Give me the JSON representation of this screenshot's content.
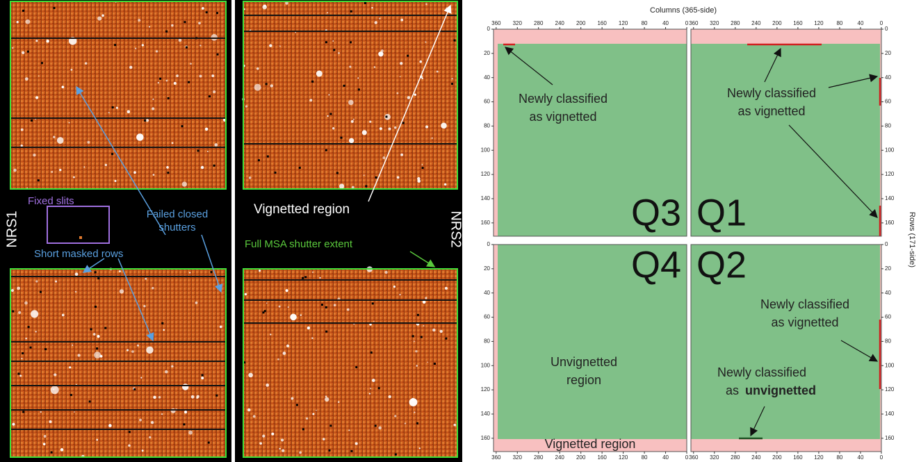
{
  "left_panel": {
    "detector_labels": [
      "NRS1",
      "NRS2"
    ],
    "fixed_slits": "Fixed slits",
    "failed_closed_shutters": [
      "Failed closed",
      "shutters"
    ],
    "short_masked_rows": "Short masked rows",
    "vignetted_region": "Vignetted region",
    "full_msa_shutter_extent": "Full MSA shutter extent"
  },
  "right_panel": {
    "x_axis_label": "Columns (365-side)",
    "y_axis_label": "Rows (171-side)",
    "column_ticks": [
      360,
      320,
      280,
      240,
      200,
      160,
      120,
      80,
      40,
      0
    ],
    "row_ticks": [
      0,
      20,
      40,
      60,
      80,
      100,
      120,
      140,
      160
    ],
    "quadrants": [
      {
        "label": "Q3",
        "annotation": [
          "Newly classified",
          "as vignetted"
        ]
      },
      {
        "label": "Q1",
        "annotation": [
          "Newly classified",
          "as vignetted"
        ]
      },
      {
        "label": "Q4",
        "annotation": [
          "Unvignetted",
          "region"
        ],
        "bottom_label": "Vignetted region"
      },
      {
        "label": "Q2",
        "annotation": [
          "Newly classified",
          "as vignetted"
        ],
        "annotation_2": [
          "Newly classified",
          "as",
          "unvignetted"
        ]
      }
    ]
  }
}
